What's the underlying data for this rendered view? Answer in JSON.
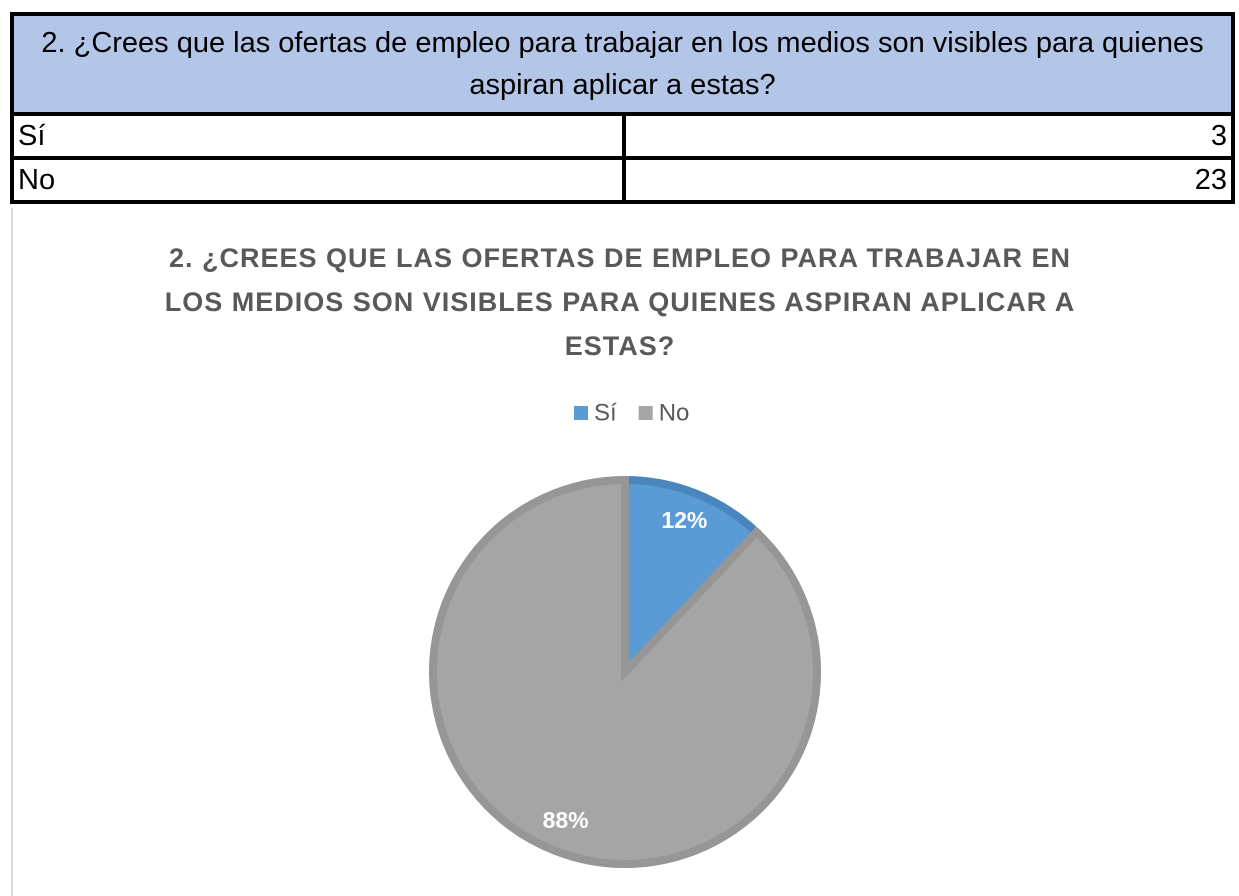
{
  "table": {
    "title": "2. ¿Crees que las ofertas de empleo para trabajar en los medios son visibles para quienes aspiran aplicar a estas?",
    "rows": [
      [
        "Sí",
        3
      ],
      [
        "No",
        23
      ]
    ]
  },
  "chart_data": {
    "type": "pie",
    "title": "2. ¿CREES QUE LAS OFERTAS DE EMPLEO PARA TRABAJAR EN LOS MEDIOS SON VISIBLES PARA QUIENES ASPIRAN APLICAR A ESTAS?",
    "categories": [
      "Sí",
      "No"
    ],
    "values": [
      12,
      88
    ],
    "value_labels": [
      "12%",
      "88%"
    ],
    "colors": [
      "#5b9bd5",
      "#a5a5a5"
    ],
    "legend": "top"
  }
}
